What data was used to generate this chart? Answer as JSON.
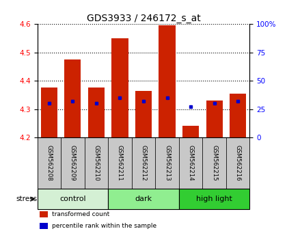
{
  "title": "GDS3933 / 246172_s_at",
  "samples": [
    "GSM562208",
    "GSM562209",
    "GSM562210",
    "GSM562211",
    "GSM562212",
    "GSM562213",
    "GSM562214",
    "GSM562215",
    "GSM562216"
  ],
  "red_values": [
    4.375,
    4.475,
    4.375,
    4.55,
    4.365,
    4.595,
    4.24,
    4.33,
    4.355
  ],
  "blue_percentiles": [
    30,
    32,
    30,
    35,
    32,
    35,
    27,
    30,
    32
  ],
  "ylim_left": [
    4.2,
    4.6
  ],
  "ylim_right": [
    0,
    100
  ],
  "yticks_left": [
    4.2,
    4.3,
    4.4,
    4.5,
    4.6
  ],
  "yticks_right": [
    0,
    25,
    50,
    75,
    100
  ],
  "ytick_labels_right": [
    "0",
    "25",
    "50",
    "75",
    "100%"
  ],
  "groups": [
    {
      "label": "control",
      "start": 0,
      "end": 3,
      "color": "#d4f0d4"
    },
    {
      "label": "dark",
      "start": 3,
      "end": 6,
      "color": "#90EE90"
    },
    {
      "label": "high light",
      "start": 6,
      "end": 9,
      "color": "#32CD32"
    }
  ],
  "stress_label": "stress",
  "bar_color": "#CC2200",
  "dot_color": "#0000CC",
  "bar_width": 0.7,
  "base_value": 4.2,
  "legend_items": [
    {
      "color": "#CC2200",
      "label": "transformed count"
    },
    {
      "color": "#0000CC",
      "label": "percentile rank within the sample"
    }
  ],
  "sample_box_color": "#C8C8C8",
  "title_fontsize": 10
}
